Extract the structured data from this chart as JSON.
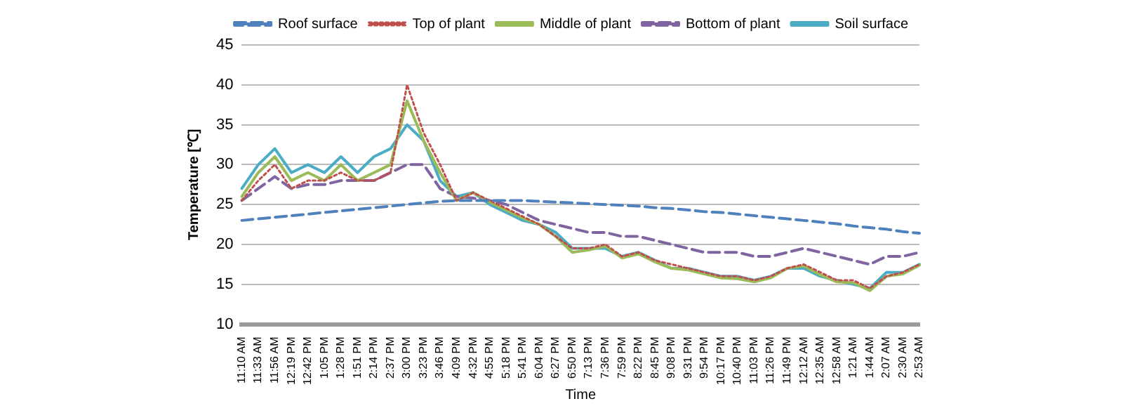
{
  "chart_data": {
    "type": "line",
    "xlabel": "Time",
    "ylabel": "Temperature [℃]",
    "categories": [
      "11:10 AM",
      "11:33 AM",
      "11:56 AM",
      "12:19 PM",
      "12:42 PM",
      "1:05 PM",
      "1:28 PM",
      "1:51 PM",
      "2:14 PM",
      "2:37 PM",
      "3:00 PM",
      "3:23 PM",
      "3:46 PM",
      "4:09 PM",
      "4:32 PM",
      "4:55 PM",
      "5:18 PM",
      "5:41 PM",
      "6:04 PM",
      "6:27 PM",
      "6:50 PM",
      "7:13 PM",
      "7:36 PM",
      "7:59 PM",
      "8:22 PM",
      "8:45 PM",
      "9:08 PM",
      "9:31 PM",
      "9:54 PM",
      "10:17 PM",
      "10:40 PM",
      "11:03 PM",
      "11:26 PM",
      "11:49 PM",
      "12:12 AM",
      "12:35 AM",
      "12:58 AM",
      "1:21 AM",
      "1:44 AM",
      "2:07 AM",
      "2:30 AM",
      "2:53 AM"
    ],
    "series": [
      {
        "name": "Roof surface",
        "color": "#4f81bd",
        "line_style": "dashed",
        "values": [
          23.0,
          23.2,
          23.4,
          23.6,
          23.8,
          24.0,
          24.2,
          24.4,
          24.6,
          24.8,
          25.0,
          25.2,
          25.4,
          25.5,
          25.5,
          25.5,
          25.5,
          25.5,
          25.4,
          25.3,
          25.2,
          25.1,
          25.0,
          24.9,
          24.8,
          24.6,
          24.5,
          24.3,
          24.1,
          24.0,
          23.8,
          23.6,
          23.4,
          23.2,
          23.0,
          22.8,
          22.6,
          22.3,
          22.1,
          21.9,
          21.6,
          21.4
        ]
      },
      {
        "name": "Top of plant",
        "color": "#c0504d",
        "line_style": "dotted",
        "values": [
          25.5,
          28,
          30,
          27,
          28,
          28,
          29,
          28,
          28,
          29,
          40,
          34,
          30,
          25.5,
          26.5,
          25.5,
          24.5,
          23.5,
          22.5,
          21,
          19.5,
          19.5,
          20,
          18.5,
          19,
          18,
          17.5,
          17,
          16.5,
          16,
          16,
          15.5,
          16,
          17,
          17.5,
          16.5,
          15.5,
          15.5,
          14.5,
          16,
          16.5,
          17.5
        ]
      },
      {
        "name": "Middle of plant",
        "color": "#9bbb59",
        "line_style": "solid",
        "values": [
          26,
          29,
          31,
          28,
          29,
          28,
          30,
          28,
          29,
          30,
          38,
          33,
          29,
          25.5,
          26.5,
          25.3,
          24.3,
          23.3,
          22.5,
          21,
          19,
          19.3,
          19.8,
          18.3,
          18.8,
          17.8,
          17,
          16.8,
          16.3,
          15.8,
          15.7,
          15.3,
          15.8,
          17,
          17.3,
          16.2,
          15.3,
          15.2,
          14.2,
          16,
          16.3,
          17.4
        ]
      },
      {
        "name": "Bottom of plant",
        "color": "#8064a2",
        "line_style": "dashed",
        "values": [
          25.5,
          27,
          28.5,
          27,
          27.5,
          27.5,
          28,
          28,
          28,
          29,
          30,
          30,
          27,
          26,
          25.8,
          25.5,
          25,
          24,
          23,
          22.5,
          22,
          21.5,
          21.5,
          21,
          21,
          20.5,
          20,
          19.5,
          19,
          19,
          19,
          18.5,
          18.5,
          19,
          19.5,
          19,
          18.5,
          18,
          17.5,
          18.5,
          18.5,
          19
        ]
      },
      {
        "name": "Soil surface",
        "color": "#4bacc6",
        "line_style": "solid",
        "values": [
          27,
          30,
          32,
          29,
          30,
          29,
          31,
          29,
          31,
          32,
          35,
          33,
          28,
          26,
          26.5,
          25,
          24,
          23,
          22.5,
          21.5,
          19.5,
          19.5,
          19.5,
          18.5,
          19,
          18,
          17,
          17,
          16.5,
          16,
          16,
          15.5,
          16,
          17,
          17,
          16,
          15.5,
          15,
          14.5,
          16.5,
          16.5,
          17.5
        ]
      }
    ],
    "ylim": [
      10,
      45
    ],
    "yticks": [
      10,
      15,
      20,
      25,
      30,
      35,
      40,
      45
    ],
    "grid": "y",
    "legend": "top",
    "marker": "none"
  }
}
